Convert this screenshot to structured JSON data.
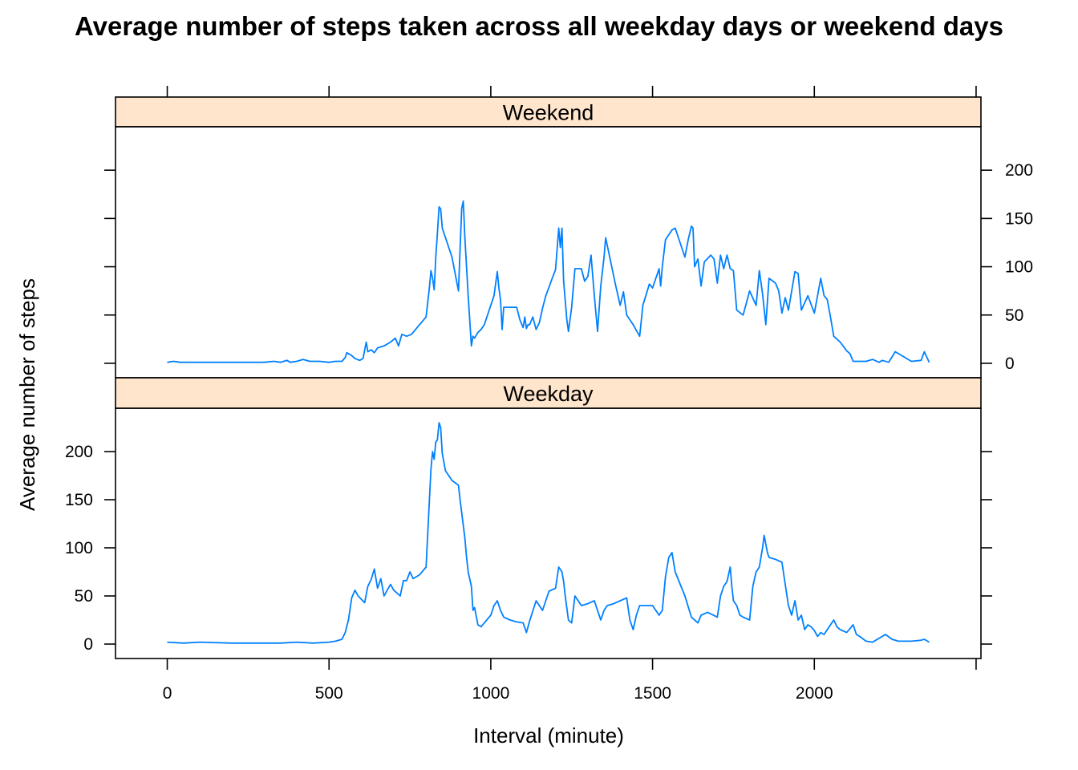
{
  "chart_data": {
    "type": "line",
    "title": "Average number of steps taken across all weekday days or weekend days",
    "xlabel": "Interval (minute)",
    "ylabel": "Average number of steps",
    "xlim": [
      -160,
      2515
    ],
    "ylim": [
      -15,
      245
    ],
    "x_ticks": [
      0,
      500,
      1000,
      1500,
      2000
    ],
    "y_ticks": [
      0,
      50,
      100,
      150,
      200
    ],
    "series_color": "#0080ff",
    "strip_color": "#ffe5cc",
    "grid": false,
    "panels": [
      {
        "name": "Weekend",
        "points": [
          [
            0,
            1
          ],
          [
            20,
            2
          ],
          [
            40,
            1
          ],
          [
            100,
            1
          ],
          [
            150,
            1
          ],
          [
            200,
            1
          ],
          [
            300,
            1
          ],
          [
            330,
            2
          ],
          [
            350,
            1
          ],
          [
            370,
            3
          ],
          [
            380,
            1
          ],
          [
            400,
            2
          ],
          [
            420,
            4
          ],
          [
            440,
            2
          ],
          [
            470,
            2
          ],
          [
            500,
            1
          ],
          [
            520,
            2
          ],
          [
            540,
            2
          ],
          [
            550,
            6
          ],
          [
            555,
            11
          ],
          [
            570,
            8
          ],
          [
            580,
            5
          ],
          [
            595,
            3
          ],
          [
            605,
            5
          ],
          [
            615,
            22
          ],
          [
            620,
            12
          ],
          [
            630,
            14
          ],
          [
            640,
            11
          ],
          [
            650,
            16
          ],
          [
            670,
            18
          ],
          [
            690,
            22
          ],
          [
            705,
            26
          ],
          [
            715,
            18
          ],
          [
            725,
            30
          ],
          [
            740,
            28
          ],
          [
            755,
            30
          ],
          [
            770,
            36
          ],
          [
            800,
            48
          ],
          [
            810,
            78
          ],
          [
            815,
            96
          ],
          [
            820,
            88
          ],
          [
            825,
            76
          ],
          [
            830,
            110
          ],
          [
            835,
            134
          ],
          [
            840,
            162
          ],
          [
            845,
            160
          ],
          [
            850,
            140
          ],
          [
            855,
            135
          ],
          [
            880,
            110
          ],
          [
            900,
            75
          ],
          [
            905,
            118
          ],
          [
            910,
            160
          ],
          [
            915,
            168
          ],
          [
            920,
            130
          ],
          [
            930,
            70
          ],
          [
            940,
            18
          ],
          [
            945,
            28
          ],
          [
            950,
            26
          ],
          [
            960,
            32
          ],
          [
            970,
            35
          ],
          [
            980,
            40
          ],
          [
            1000,
            60
          ],
          [
            1010,
            70
          ],
          [
            1020,
            95
          ],
          [
            1025,
            78
          ],
          [
            1030,
            66
          ],
          [
            1035,
            35
          ],
          [
            1040,
            58
          ],
          [
            1060,
            58
          ],
          [
            1080,
            58
          ],
          [
            1090,
            45
          ],
          [
            1100,
            37
          ],
          [
            1105,
            48
          ],
          [
            1110,
            36
          ],
          [
            1115,
            40
          ],
          [
            1120,
            40
          ],
          [
            1130,
            48
          ],
          [
            1140,
            35
          ],
          [
            1150,
            42
          ],
          [
            1160,
            57
          ],
          [
            1170,
            70
          ],
          [
            1190,
            88
          ],
          [
            1200,
            97
          ],
          [
            1210,
            140
          ],
          [
            1215,
            120
          ],
          [
            1220,
            140
          ],
          [
            1225,
            85
          ],
          [
            1235,
            45
          ],
          [
            1240,
            33
          ],
          [
            1250,
            58
          ],
          [
            1260,
            98
          ],
          [
            1270,
            98
          ],
          [
            1280,
            98
          ],
          [
            1290,
            85
          ],
          [
            1300,
            90
          ],
          [
            1310,
            112
          ],
          [
            1320,
            70
          ],
          [
            1330,
            33
          ],
          [
            1340,
            80
          ],
          [
            1350,
            110
          ],
          [
            1355,
            130
          ],
          [
            1375,
            98
          ],
          [
            1385,
            82
          ],
          [
            1400,
            60
          ],
          [
            1410,
            74
          ],
          [
            1420,
            50
          ],
          [
            1440,
            40
          ],
          [
            1460,
            28
          ],
          [
            1470,
            60
          ],
          [
            1490,
            82
          ],
          [
            1500,
            78
          ],
          [
            1520,
            98
          ],
          [
            1525,
            80
          ],
          [
            1530,
            100
          ],
          [
            1540,
            128
          ],
          [
            1560,
            138
          ],
          [
            1570,
            140
          ],
          [
            1600,
            110
          ],
          [
            1610,
            128
          ],
          [
            1620,
            142
          ],
          [
            1625,
            140
          ],
          [
            1630,
            100
          ],
          [
            1640,
            108
          ],
          [
            1650,
            80
          ],
          [
            1660,
            105
          ],
          [
            1680,
            112
          ],
          [
            1690,
            108
          ],
          [
            1700,
            83
          ],
          [
            1710,
            112
          ],
          [
            1720,
            98
          ],
          [
            1730,
            112
          ],
          [
            1740,
            98
          ],
          [
            1750,
            96
          ],
          [
            1760,
            55
          ],
          [
            1780,
            50
          ],
          [
            1800,
            75
          ],
          [
            1820,
            60
          ],
          [
            1830,
            96
          ],
          [
            1840,
            72
          ],
          [
            1850,
            40
          ],
          [
            1860,
            88
          ],
          [
            1880,
            83
          ],
          [
            1890,
            75
          ],
          [
            1900,
            52
          ],
          [
            1910,
            68
          ],
          [
            1920,
            55
          ],
          [
            1940,
            95
          ],
          [
            1950,
            93
          ],
          [
            1960,
            55
          ],
          [
            1980,
            70
          ],
          [
            2000,
            52
          ],
          [
            2020,
            88
          ],
          [
            2030,
            70
          ],
          [
            2040,
            66
          ],
          [
            2050,
            48
          ],
          [
            2060,
            28
          ],
          [
            2080,
            22
          ],
          [
            2100,
            13
          ],
          [
            2110,
            10
          ],
          [
            2120,
            2
          ],
          [
            2160,
            2
          ],
          [
            2180,
            4
          ],
          [
            2200,
            1
          ],
          [
            2210,
            3
          ],
          [
            2230,
            1
          ],
          [
            2250,
            12
          ],
          [
            2260,
            10
          ],
          [
            2300,
            2
          ],
          [
            2330,
            3
          ],
          [
            2340,
            12
          ],
          [
            2355,
            1
          ]
        ]
      },
      {
        "name": "Weekday",
        "points": [
          [
            0,
            2
          ],
          [
            50,
            1
          ],
          [
            100,
            2
          ],
          [
            200,
            1
          ],
          [
            300,
            1
          ],
          [
            350,
            1
          ],
          [
            400,
            2
          ],
          [
            450,
            1
          ],
          [
            500,
            2
          ],
          [
            520,
            3
          ],
          [
            540,
            5
          ],
          [
            550,
            12
          ],
          [
            560,
            25
          ],
          [
            570,
            48
          ],
          [
            580,
            56
          ],
          [
            590,
            50
          ],
          [
            610,
            43
          ],
          [
            620,
            60
          ],
          [
            630,
            67
          ],
          [
            640,
            78
          ],
          [
            650,
            58
          ],
          [
            660,
            68
          ],
          [
            670,
            50
          ],
          [
            680,
            56
          ],
          [
            690,
            62
          ],
          [
            700,
            56
          ],
          [
            720,
            50
          ],
          [
            730,
            66
          ],
          [
            740,
            66
          ],
          [
            750,
            75
          ],
          [
            760,
            68
          ],
          [
            780,
            72
          ],
          [
            800,
            80
          ],
          [
            815,
            182
          ],
          [
            820,
            200
          ],
          [
            825,
            192
          ],
          [
            830,
            210
          ],
          [
            835,
            212
          ],
          [
            840,
            230
          ],
          [
            845,
            225
          ],
          [
            850,
            198
          ],
          [
            860,
            180
          ],
          [
            870,
            175
          ],
          [
            880,
            170
          ],
          [
            900,
            165
          ],
          [
            905,
            150
          ],
          [
            920,
            110
          ],
          [
            925,
            90
          ],
          [
            930,
            75
          ],
          [
            940,
            60
          ],
          [
            945,
            35
          ],
          [
            950,
            38
          ],
          [
            960,
            20
          ],
          [
            970,
            18
          ],
          [
            980,
            22
          ],
          [
            1000,
            30
          ],
          [
            1010,
            40
          ],
          [
            1020,
            45
          ],
          [
            1030,
            35
          ],
          [
            1040,
            28
          ],
          [
            1060,
            25
          ],
          [
            1080,
            23
          ],
          [
            1100,
            22
          ],
          [
            1110,
            12
          ],
          [
            1120,
            24
          ],
          [
            1140,
            45
          ],
          [
            1150,
            40
          ],
          [
            1160,
            35
          ],
          [
            1180,
            55
          ],
          [
            1200,
            58
          ],
          [
            1210,
            80
          ],
          [
            1220,
            75
          ],
          [
            1225,
            65
          ],
          [
            1230,
            50
          ],
          [
            1240,
            25
          ],
          [
            1250,
            22
          ],
          [
            1260,
            50
          ],
          [
            1280,
            40
          ],
          [
            1300,
            42
          ],
          [
            1320,
            45
          ],
          [
            1340,
            25
          ],
          [
            1350,
            35
          ],
          [
            1360,
            40
          ],
          [
            1380,
            42
          ],
          [
            1400,
            45
          ],
          [
            1420,
            48
          ],
          [
            1430,
            25
          ],
          [
            1440,
            15
          ],
          [
            1450,
            30
          ],
          [
            1460,
            40
          ],
          [
            1480,
            40
          ],
          [
            1500,
            40
          ],
          [
            1520,
            30
          ],
          [
            1530,
            35
          ],
          [
            1540,
            70
          ],
          [
            1550,
            90
          ],
          [
            1560,
            95
          ],
          [
            1570,
            75
          ],
          [
            1600,
            50
          ],
          [
            1620,
            28
          ],
          [
            1640,
            22
          ],
          [
            1650,
            30
          ],
          [
            1670,
            33
          ],
          [
            1700,
            28
          ],
          [
            1710,
            50
          ],
          [
            1720,
            60
          ],
          [
            1730,
            65
          ],
          [
            1740,
            80
          ],
          [
            1745,
            60
          ],
          [
            1750,
            45
          ],
          [
            1760,
            40
          ],
          [
            1770,
            30
          ],
          [
            1780,
            28
          ],
          [
            1800,
            25
          ],
          [
            1810,
            60
          ],
          [
            1820,
            75
          ],
          [
            1830,
            80
          ],
          [
            1840,
            100
          ],
          [
            1845,
            113
          ],
          [
            1855,
            95
          ],
          [
            1860,
            90
          ],
          [
            1880,
            88
          ],
          [
            1900,
            85
          ],
          [
            1910,
            62
          ],
          [
            1920,
            40
          ],
          [
            1930,
            30
          ],
          [
            1940,
            45
          ],
          [
            1950,
            25
          ],
          [
            1960,
            30
          ],
          [
            1970,
            15
          ],
          [
            1980,
            20
          ],
          [
            1990,
            18
          ],
          [
            2000,
            14
          ],
          [
            2010,
            8
          ],
          [
            2020,
            12
          ],
          [
            2030,
            10
          ],
          [
            2040,
            15
          ],
          [
            2050,
            20
          ],
          [
            2060,
            25
          ],
          [
            2070,
            18
          ],
          [
            2080,
            15
          ],
          [
            2100,
            12
          ],
          [
            2120,
            20
          ],
          [
            2130,
            10
          ],
          [
            2140,
            8
          ],
          [
            2160,
            3
          ],
          [
            2180,
            2
          ],
          [
            2200,
            6
          ],
          [
            2220,
            10
          ],
          [
            2240,
            5
          ],
          [
            2260,
            3
          ],
          [
            2300,
            3
          ],
          [
            2330,
            4
          ],
          [
            2340,
            5
          ],
          [
            2355,
            2
          ]
        ]
      }
    ]
  }
}
